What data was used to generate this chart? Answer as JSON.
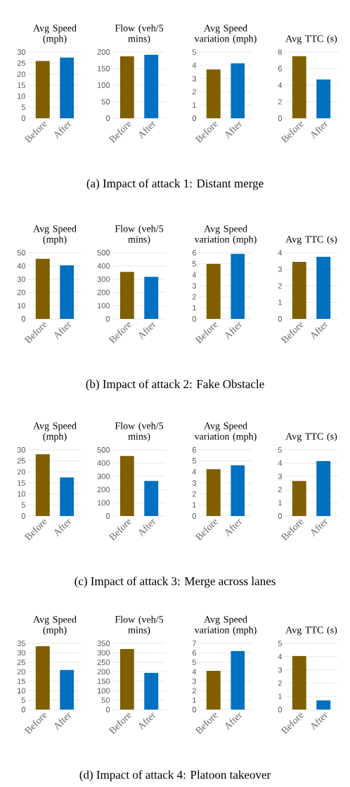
{
  "chart_data": [
    {
      "type": "bar",
      "title": "Avg Speed (mph)",
      "categories": [
        "Before",
        "After"
      ],
      "values": [
        26,
        27.5
      ],
      "colors": [
        "#7f5f00",
        "#0070c0"
      ],
      "ylim": [
        0,
        30
      ],
      "yticks": [
        0,
        5,
        10,
        15,
        20,
        25,
        30
      ],
      "grid": "y"
    },
    {
      "type": "bar",
      "title": "Flow (veh/5 mins)",
      "categories": [
        "Before",
        "After"
      ],
      "values": [
        187,
        192
      ],
      "colors": [
        "#7f5f00",
        "#0070c0"
      ],
      "ylim": [
        0,
        200
      ],
      "yticks": [
        0,
        50,
        100,
        150,
        200
      ],
      "grid": "y"
    },
    {
      "type": "bar",
      "title": "Avg Speed variation (mph)",
      "categories": [
        "Before",
        "After"
      ],
      "values": [
        3.7,
        4.15
      ],
      "colors": [
        "#7f5f00",
        "#0070c0"
      ],
      "ylim": [
        0,
        5
      ],
      "yticks": [
        0,
        1,
        2,
        3,
        4,
        5
      ],
      "grid": "y"
    },
    {
      "type": "bar",
      "title": "Avg TTC (s)",
      "categories": [
        "Before",
        "After"
      ],
      "values": [
        7.5,
        4.7
      ],
      "colors": [
        "#7f5f00",
        "#0070c0"
      ],
      "ylim": [
        0,
        8
      ],
      "yticks": [
        0,
        2,
        4,
        6,
        8
      ],
      "grid": "y",
      "annotations": [
        "(a) Impact of attack 1: Distant merge"
      ]
    },
    {
      "type": "bar",
      "title": "Avg Speed (mph)",
      "categories": [
        "Before",
        "After"
      ],
      "values": [
        45.5,
        40.5
      ],
      "colors": [
        "#7f5f00",
        "#0070c0"
      ],
      "ylim": [
        0,
        50
      ],
      "yticks": [
        0,
        10,
        20,
        30,
        40,
        50
      ],
      "grid": "y"
    },
    {
      "type": "bar",
      "title": "Flow (veh/5 mins)",
      "categories": [
        "Before",
        "After"
      ],
      "values": [
        355,
        318
      ],
      "colors": [
        "#7f5f00",
        "#0070c0"
      ],
      "ylim": [
        0,
        500
      ],
      "yticks": [
        0,
        100,
        200,
        300,
        400,
        500
      ],
      "grid": "y"
    },
    {
      "type": "bar",
      "title": "Avg Speed variation (mph)",
      "categories": [
        "Before",
        "After"
      ],
      "values": [
        5.0,
        5.9
      ],
      "colors": [
        "#7f5f00",
        "#0070c0"
      ],
      "ylim": [
        0,
        6
      ],
      "yticks": [
        0,
        1,
        2,
        3,
        4,
        5,
        6
      ],
      "grid": "y"
    },
    {
      "type": "bar",
      "title": "Avg TTC (s)",
      "categories": [
        "Before",
        "After"
      ],
      "values": [
        3.45,
        3.75
      ],
      "colors": [
        "#7f5f00",
        "#0070c0"
      ],
      "ylim": [
        0,
        4
      ],
      "yticks": [
        0,
        1,
        2,
        3,
        4
      ],
      "grid": "y",
      "annotations": [
        "(b) Impact of attack 2: Fake Obstacle"
      ]
    },
    {
      "type": "bar",
      "title": "Avg Speed (mph)",
      "categories": [
        "Before",
        "After"
      ],
      "values": [
        28,
        17.5
      ],
      "colors": [
        "#7f5f00",
        "#0070c0"
      ],
      "ylim": [
        0,
        30
      ],
      "yticks": [
        0,
        5,
        10,
        15,
        20,
        25,
        30
      ],
      "grid": "y"
    },
    {
      "type": "bar",
      "title": "Flow (veh/5 mins)",
      "categories": [
        "Before",
        "After"
      ],
      "values": [
        455,
        265
      ],
      "colors": [
        "#7f5f00",
        "#0070c0"
      ],
      "ylim": [
        0,
        500
      ],
      "yticks": [
        0,
        100,
        200,
        300,
        400,
        500
      ],
      "grid": "y"
    },
    {
      "type": "bar",
      "title": "Avg Speed variation (mph)",
      "categories": [
        "Before",
        "After"
      ],
      "values": [
        4.25,
        4.6
      ],
      "colors": [
        "#7f5f00",
        "#0070c0"
      ],
      "ylim": [
        0,
        6
      ],
      "yticks": [
        0,
        1,
        2,
        3,
        4,
        5,
        6
      ],
      "grid": "y"
    },
    {
      "type": "bar",
      "title": "Avg TTC (s)",
      "categories": [
        "Before",
        "After"
      ],
      "values": [
        2.65,
        4.15
      ],
      "colors": [
        "#7f5f00",
        "#0070c0"
      ],
      "ylim": [
        0,
        5
      ],
      "yticks": [
        0,
        1,
        2,
        3,
        4,
        5
      ],
      "grid": "y",
      "annotations": [
        "(c) Impact of attack 3: Merge across lanes"
      ]
    },
    {
      "type": "bar",
      "title": "Avg Speed (mph)",
      "categories": [
        "Before",
        "After"
      ],
      "values": [
        33.5,
        21
      ],
      "colors": [
        "#7f5f00",
        "#0070c0"
      ],
      "ylim": [
        0,
        35
      ],
      "yticks": [
        0,
        5,
        10,
        15,
        20,
        25,
        30,
        35
      ],
      "grid": "y"
    },
    {
      "type": "bar",
      "title": "Flow (veh/5 mins)",
      "categories": [
        "Before",
        "After"
      ],
      "values": [
        320,
        195
      ],
      "colors": [
        "#7f5f00",
        "#0070c0"
      ],
      "ylim": [
        0,
        350
      ],
      "yticks": [
        0,
        50,
        100,
        150,
        200,
        250,
        300,
        350
      ],
      "grid": "y"
    },
    {
      "type": "bar",
      "title": "Avg Speed variation (mph)",
      "categories": [
        "Before",
        "After"
      ],
      "values": [
        4.1,
        6.2
      ],
      "colors": [
        "#7f5f00",
        "#0070c0"
      ],
      "ylim": [
        0,
        7
      ],
      "yticks": [
        0,
        1,
        2,
        3,
        4,
        5,
        6,
        7
      ],
      "grid": "y"
    },
    {
      "type": "bar",
      "title": "Avg TTC (s)",
      "categories": [
        "Before",
        "After"
      ],
      "values": [
        4.05,
        0.7
      ],
      "colors": [
        "#7f5f00",
        "#0070c0"
      ],
      "ylim": [
        0,
        5
      ],
      "yticks": [
        0,
        1,
        2,
        3,
        4,
        5
      ],
      "grid": "y",
      "annotations": [
        "(d) Impact of attack 4: Platoon takeover"
      ]
    }
  ]
}
